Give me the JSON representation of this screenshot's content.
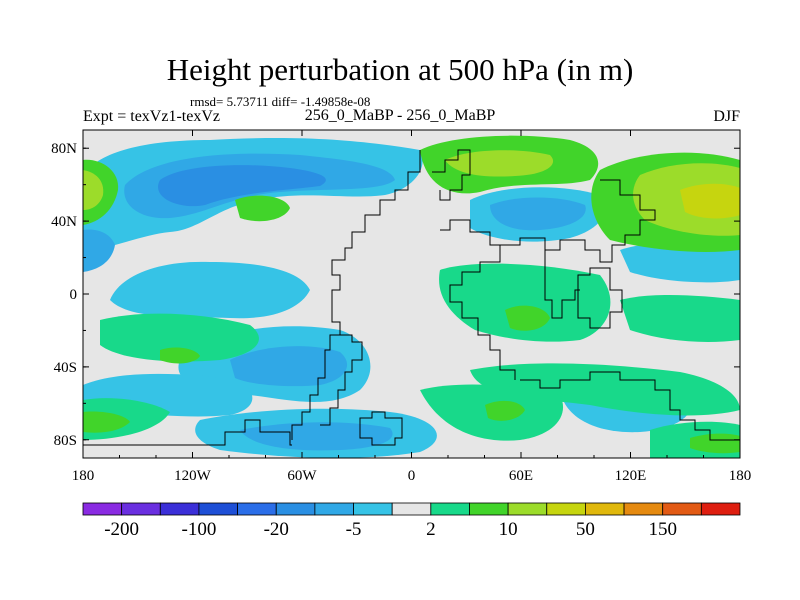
{
  "header": {
    "title": "Height perturbation at 500 hPa (in m)",
    "stats": "rmsd= 5.73711 diff= -1.49858e-08",
    "expt": "Expt = texVz1-texVz",
    "runs": "256_0_MaBP - 256_0_MaBP",
    "season": "DJF"
  },
  "axes": {
    "lon_ticks": [
      {
        "value": -180,
        "label": "180"
      },
      {
        "value": -120,
        "label": "120W"
      },
      {
        "value": -60,
        "label": "60W"
      },
      {
        "value": 0,
        "label": "0"
      },
      {
        "value": 60,
        "label": "60E"
      },
      {
        "value": 120,
        "label": "120E"
      },
      {
        "value": 180,
        "label": "180"
      }
    ],
    "lat_ticks": [
      {
        "value": 80,
        "label": "80N"
      },
      {
        "value": 40,
        "label": "40N"
      },
      {
        "value": 0,
        "label": "0"
      },
      {
        "value": -40,
        "label": "40S"
      },
      {
        "value": -80,
        "label": "80S"
      }
    ],
    "lon_range": [
      -180,
      180
    ],
    "lat_range": [
      -90,
      90
    ]
  },
  "colorbar": {
    "colors": [
      "#8a2be2",
      "#6a2fe0",
      "#3b2fd8",
      "#1e4fd6",
      "#2b6ee8",
      "#2a8fe3",
      "#30a8e6",
      "#36c3e6",
      "#e6e6e6",
      "#18d98a",
      "#41d42a",
      "#9cdc2a",
      "#c6d50f",
      "#e0b80c",
      "#e58a10",
      "#e25a14",
      "#de1e10"
    ],
    "labels": [
      {
        "after_box": 1,
        "text": "-200"
      },
      {
        "after_box": 3,
        "text": "-100"
      },
      {
        "after_box": 5,
        "text": "-20"
      },
      {
        "after_box": 7,
        "text": "-5"
      },
      {
        "after_box": 9,
        "text": "2"
      },
      {
        "after_box": 11,
        "text": "10"
      },
      {
        "after_box": 13,
        "text": "50"
      },
      {
        "after_box": 15,
        "text": "150"
      }
    ]
  },
  "field_colors": {
    "background": "#e6e6e6",
    "neg_light": "#36c3e6",
    "neg_mid": "#30a8e6",
    "neg_strong": "#2a8fe3",
    "neg_deep": "#2b6ee8",
    "pos_light": "#18d98a",
    "pos_mid": "#41d42a",
    "pos_strong": "#9cdc2a",
    "pos_peak": "#c6d50f"
  }
}
